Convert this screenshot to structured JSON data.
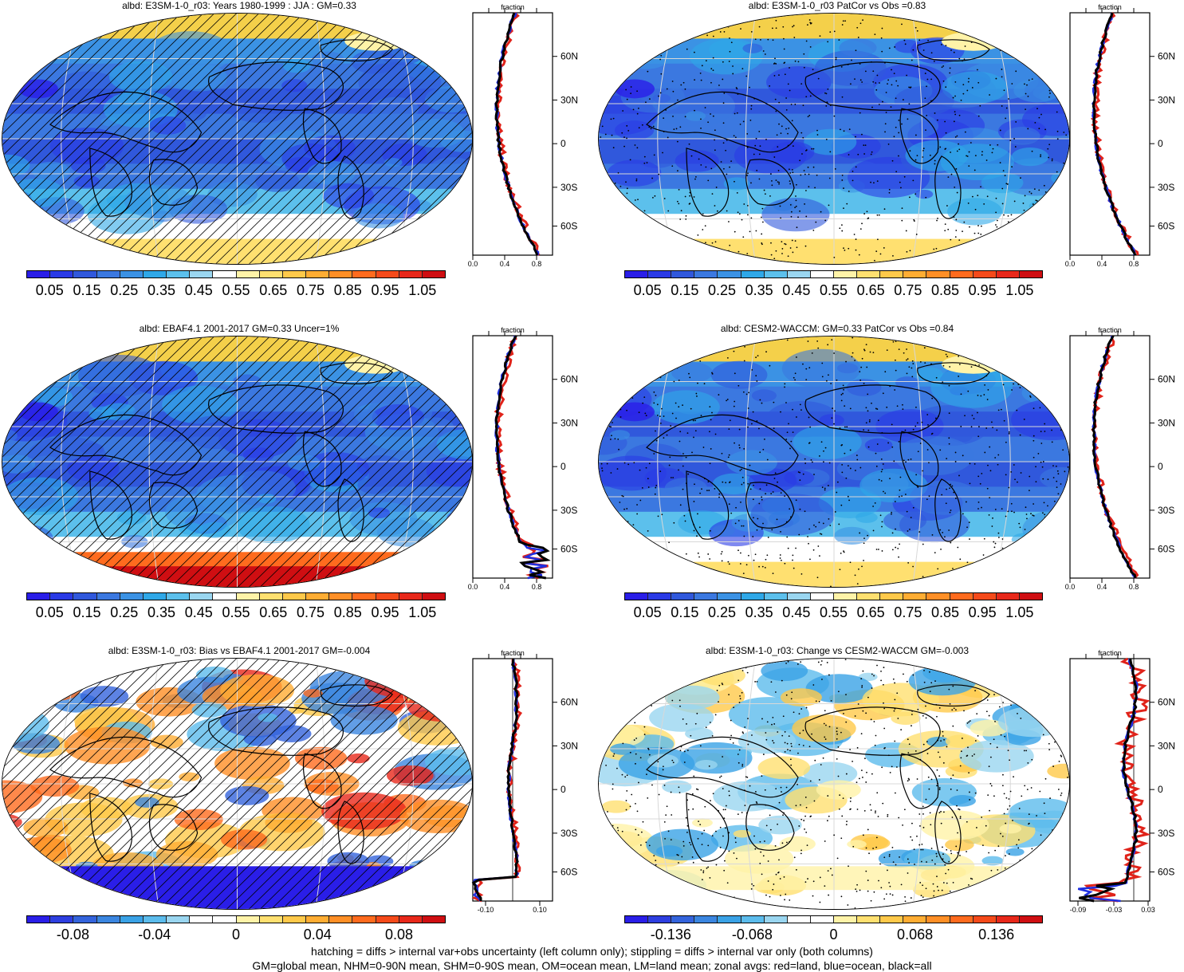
{
  "panels": [
    {
      "id": "p1",
      "title": "albd: E3SM-1-0_r03: Years 1980-1999 : JJA : GM=0.33",
      "scheme": "abs",
      "overlay": "hatch",
      "cbar": [
        "0.05",
        "0.15",
        "0.25",
        "0.35",
        "0.45",
        "0.55",
        "0.65",
        "0.75",
        "0.85",
        "0.95",
        "1.05"
      ],
      "zonal_ticks": [
        "0.0",
        "0.4",
        "0.8"
      ],
      "zonal_title": "fraction",
      "lat_ticks": [
        "60N",
        "30N",
        "0",
        "30S",
        "60S"
      ],
      "zonal_kind": "abs",
      "zonal_range": [
        0,
        1
      ]
    },
    {
      "id": "p2",
      "title": "albd: E3SM-1-0_r03 PatCor vs Obs =0.83",
      "scheme": "abs",
      "overlay": "stipple",
      "cbar": [
        "0.05",
        "0.15",
        "0.25",
        "0.35",
        "0.45",
        "0.55",
        "0.65",
        "0.75",
        "0.85",
        "0.95",
        "1.05"
      ],
      "zonal_ticks": [
        "0.0",
        "0.4",
        "0.8"
      ],
      "zonal_title": "fraction",
      "lat_ticks": [
        "60N",
        "30N",
        "0",
        "30S",
        "60S"
      ],
      "zonal_kind": "abs",
      "zonal_range": [
        0,
        1
      ]
    },
    {
      "id": "p3",
      "title": "albd: EBAF4.1 2001-2017 GM=0.33 Uncer=1%",
      "scheme": "abs",
      "overlay": "hatch",
      "cbar": [
        "0.05",
        "0.15",
        "0.25",
        "0.35",
        "0.45",
        "0.55",
        "0.65",
        "0.75",
        "0.85",
        "0.95",
        "1.05"
      ],
      "zonal_ticks": [
        "0.0",
        "0.4",
        "0.8"
      ],
      "zonal_title": "fraction",
      "lat_ticks": [
        "60N",
        "30N",
        "0",
        "30S",
        "60S"
      ],
      "zonal_kind": "obs",
      "zonal_range": [
        0,
        1
      ]
    },
    {
      "id": "p4",
      "title": "albd: CESM2-WACCM: GM=0.33 PatCor vs Obs =0.84",
      "scheme": "abs",
      "overlay": "stipple",
      "cbar": [
        "0.05",
        "0.15",
        "0.25",
        "0.35",
        "0.45",
        "0.55",
        "0.65",
        "0.75",
        "0.85",
        "0.95",
        "1.05"
      ],
      "zonal_ticks": [
        "0.0",
        "0.4",
        "0.8"
      ],
      "zonal_title": "fraction",
      "lat_ticks": [
        "60N",
        "30N",
        "0",
        "30S",
        "60S"
      ],
      "zonal_kind": "abs",
      "zonal_range": [
        0,
        1
      ]
    },
    {
      "id": "p5",
      "title": "albd: E3SM-1-0_r03: Bias vs EBAF4.1 2001-2017 GM=-0.004",
      "scheme": "bias",
      "overlay": "hatch",
      "cbar": [
        "-0.08",
        "-0.04",
        "0",
        "0.04",
        "0.08"
      ],
      "zonal_ticks": [
        "-0.10",
        "0.10"
      ],
      "zonal_title": "fraction",
      "lat_ticks": [
        "60N",
        "30N",
        "0",
        "30S",
        "60S"
      ],
      "zonal_kind": "bias",
      "zonal_range": [
        -0.15,
        0.15
      ]
    },
    {
      "id": "p6",
      "title": "albd: E3SM-1-0_r03: Change vs CESM2-WACCM GM=-0.003",
      "scheme": "change",
      "overlay": "stipple",
      "cbar": [
        "-0.136",
        "-0.068",
        "0",
        "0.068",
        "0.136"
      ],
      "zonal_ticks": [
        "-0.09",
        "-0.03",
        "0.03"
      ],
      "zonal_title": "fraction",
      "lat_ticks": [
        "60N",
        "30N",
        "0",
        "30S",
        "60S"
      ],
      "zonal_kind": "change",
      "zonal_range": [
        -0.12,
        0.03
      ]
    }
  ],
  "colors": {
    "abs": [
      "#2a1ee8",
      "#2a3ae6",
      "#3058dc",
      "#3b78e0",
      "#3b92e4",
      "#2fa8e8",
      "#5cc0ec",
      "#9ad6f0",
      "#ffffff",
      "#fff3a8",
      "#ffe070",
      "#ffc94a",
      "#ffad33",
      "#ff8f26",
      "#ff6b1e",
      "#f54a1a",
      "#e8281a",
      "#cf0e12"
    ],
    "div": [
      "#2a1ee8",
      "#2e3fe0",
      "#3464dc",
      "#3b86e0",
      "#3aa2e6",
      "#5cbcec",
      "#9ad6f0",
      "#ffffff",
      "#ffffff",
      "#fff3a8",
      "#ffe070",
      "#ffc94a",
      "#ffad33",
      "#ff8f26",
      "#ff6b1e",
      "#f54a1a",
      "#e8281a",
      "#cf0e12"
    ]
  },
  "footer": [
    "hatching = diffs > internal var+obs uncertainty (left column only); stippling = diffs > internal var only (both columns)",
    "GM=global mean, NHM=0-90N mean, SHM=0-90S mean, OM=ocean mean, LM=land mean; zonal avgs: red=land, blue=ocean, black=all"
  ]
}
